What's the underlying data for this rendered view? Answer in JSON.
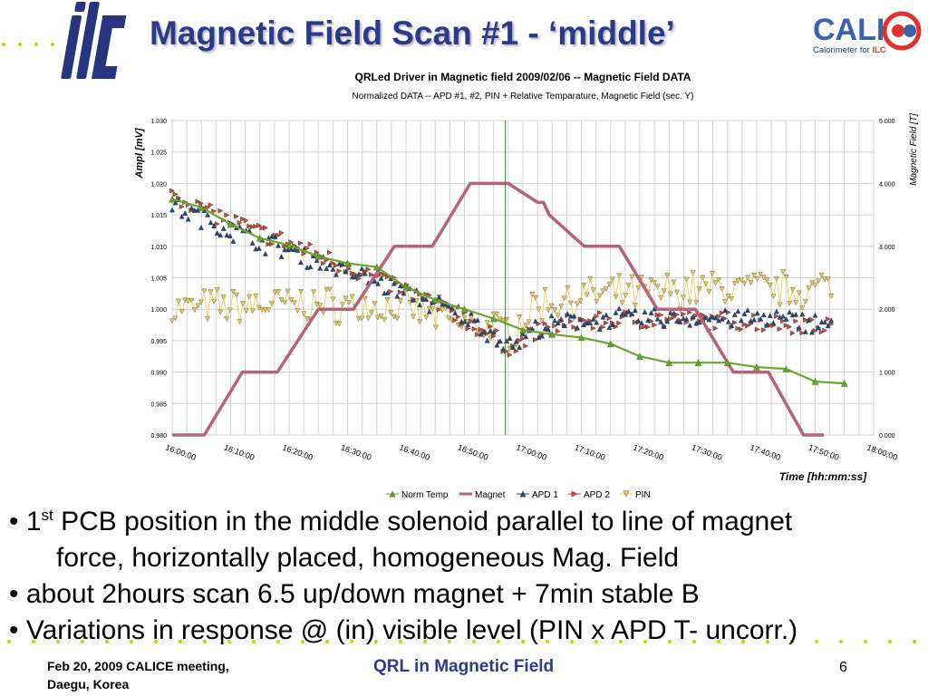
{
  "slide": {
    "title": "Magnetic Field Scan #1 - ‘middle’",
    "calice_subtitle_prefix": "Calorimeter for ",
    "calice_subtitle_highlight": "ILC",
    "bullets": [
      {
        "pre": "• 1",
        "sup": "st",
        "post": " PCB position in the middle solenoid parallel to line of magnet"
      },
      {
        "text": "force, horizontally placed, homogeneous Mag. Field"
      },
      {
        "text": "• about 2hours scan 6.5 up/down magnet + 7min stable B"
      },
      {
        "text": "• Variations in response @ (in) visible level (PIN x APD T- uncorr.)"
      }
    ],
    "footer": {
      "left_line1": "Feb 20, 2009 CALICE meeting,",
      "left_line2": "Daegu, Korea",
      "center": "QRL in Magnetic Field",
      "page": "6"
    }
  },
  "logos": {
    "ilc_text": "ilc",
    "calice_text": "CALICE",
    "colors": {
      "ilc": "#27357e",
      "calice_blue": "#3a62ad",
      "calice_red": "#e0312f"
    }
  },
  "chart_data": {
    "type": "line",
    "title": "QRLed Driver in Magnetic field 2009/02/06  -- Magnetic Field DATA",
    "subtitle": "Normalized DATA  -- APD #1, #2, PIN  +  Relative Temparature, Magnetic Field (sec. Y)",
    "ylabel": "Ampl [mV]",
    "y2label": "Magnetic Field [T]",
    "xlabel": "Time [hh:mm:ss]",
    "ylim": [
      0.98,
      1.03
    ],
    "y_ticks": [
      "0.980",
      "0.985",
      "0.990",
      "0.995",
      "1.000",
      "1.005",
      "1.010",
      "1.015",
      "1.020",
      "1.025",
      "1.030"
    ],
    "y2lim": [
      0,
      5
    ],
    "y2_ticks": [
      "0.000",
      "1.000",
      "2.000",
      "3.000",
      "4.000",
      "5.000"
    ],
    "xlim": [
      0,
      120
    ],
    "x_ticks": [
      "16:00:00",
      "16:10:00",
      "16:20:00",
      "16:30:00",
      "16:40:00",
      "16:50:00",
      "17:00:00",
      "17:10:00",
      "17:20:00",
      "17:30:00",
      "17:40:00",
      "17:50:00",
      "18:00:00"
    ],
    "marker_time": "16:57:00",
    "grid": true,
    "legend_position": "bottom",
    "series": [
      {
        "name": "Norm Temp",
        "color": "#6aa52e",
        "marker": "triangle-up",
        "x": [
          0,
          5,
          10,
          15,
          20,
          25,
          30,
          35,
          40,
          45,
          50,
          55,
          60,
          65,
          70,
          75,
          80,
          85,
          90,
          95,
          100,
          105,
          110,
          115
        ],
        "y": [
          1.0175,
          1.0162,
          1.0135,
          1.0113,
          1.0102,
          1.0084,
          1.0073,
          1.0067,
          1.0035,
          1.0015,
          1.0,
          0.9985,
          0.9967,
          0.996,
          0.9955,
          0.9945,
          0.9925,
          0.9915,
          0.9915,
          0.9915,
          0.9908,
          0.9905,
          0.9885,
          0.9882
        ]
      },
      {
        "name": "Magnet",
        "color": "#b4637a",
        "marker": "none",
        "x": [
          0,
          5.5,
          12,
          18,
          25,
          31,
          38,
          44.5,
          51,
          57.5,
          62.5,
          63.5,
          64.5,
          70.5,
          76.5,
          83,
          89.5,
          96,
          102,
          108,
          111.5
        ],
        "y": [
          0,
          0,
          1,
          1,
          2,
          2,
          3,
          3,
          4,
          4,
          3.7,
          3.7,
          3.5,
          3,
          3,
          2,
          2,
          1,
          1,
          0,
          0
        ]
      },
      {
        "name": "APD 1",
        "color": "#22467a",
        "marker": "triangle-up",
        "trend_x": [
          0,
          10,
          20,
          30,
          40,
          50,
          58,
          60,
          62,
          70,
          80,
          90,
          100,
          110,
          113
        ],
        "trend_y": [
          1.0165,
          1.0125,
          1.0093,
          1.006,
          1.0027,
          0.9988,
          0.9943,
          0.9953,
          0.9968,
          0.9983,
          0.9986,
          0.9986,
          0.9986,
          0.998,
          0.998
        ],
        "spread": 0.0014
      },
      {
        "name": "APD 2",
        "color": "#c94a34",
        "marker": "triangle-right",
        "trend_x": [
          0,
          10,
          20,
          30,
          40,
          50,
          58,
          60,
          62,
          70,
          80,
          90,
          100,
          110,
          113
        ],
        "trend_y": [
          1.0185,
          1.014,
          1.0105,
          1.0068,
          1.003,
          0.9985,
          0.9938,
          0.9948,
          0.9963,
          0.998,
          0.9984,
          0.9982,
          0.998,
          0.9975,
          0.9975
        ],
        "spread": 0.0013
      },
      {
        "name": "PIN",
        "color": "#e8c94b",
        "marker": "triangle-down",
        "trend_x": [
          0,
          10,
          20,
          30,
          40,
          50,
          58,
          60,
          62,
          70,
          80,
          90,
          100,
          110,
          113
        ],
        "trend_y": [
          1.0,
          1.0005,
          1.0008,
          1.0005,
          1.0,
          0.9978,
          0.9965,
          0.998,
          1.0005,
          1.002,
          1.0025,
          1.0033,
          1.0033,
          1.003,
          1.004
        ],
        "spread": 0.0025
      }
    ]
  }
}
